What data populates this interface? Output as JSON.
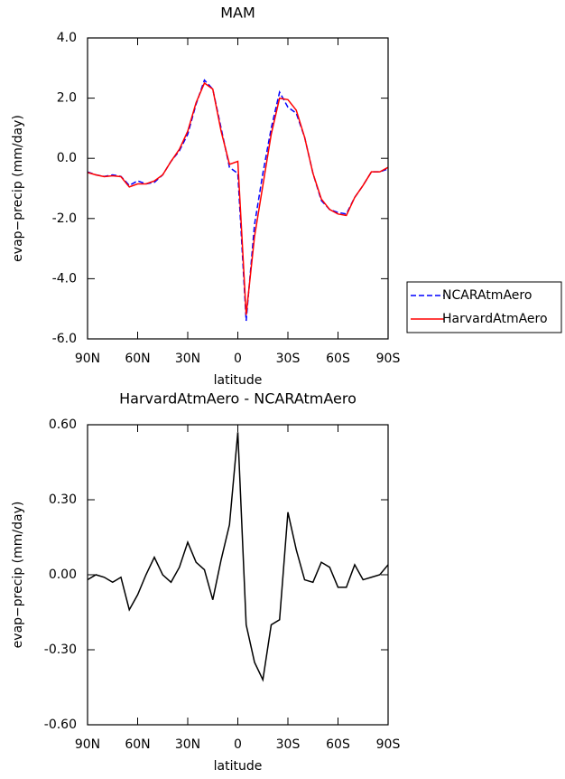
{
  "chart_data": [
    {
      "type": "line",
      "title": "MAM",
      "xlabel": "latitude",
      "ylabel": "evap−precip (mm/day)",
      "x": [
        90,
        85,
        80,
        75,
        70,
        65,
        60,
        55,
        50,
        45,
        40,
        35,
        30,
        25,
        20,
        15,
        10,
        5,
        0,
        -5,
        -10,
        -15,
        -20,
        -25,
        -30,
        -35,
        -40,
        -45,
        -50,
        -55,
        -60,
        -65,
        -70,
        -75,
        -80,
        -85,
        -90
      ],
      "series": [
        {
          "name": "NCARAtmAero",
          "color": "#0000ff",
          "style": "dashed",
          "values": [
            -0.45,
            -0.55,
            -0.6,
            -0.55,
            -0.6,
            -0.9,
            -0.75,
            -0.85,
            -0.8,
            -0.55,
            -0.1,
            0.25,
            0.8,
            1.8,
            2.6,
            2.3,
            1.0,
            -0.3,
            -0.5,
            -5.4,
            -2.2,
            -0.5,
            1.0,
            2.2,
            1.7,
            1.5,
            0.7,
            -0.5,
            -1.4,
            -1.7,
            -1.8,
            -1.85,
            -1.3,
            -0.9,
            -0.45,
            -0.45,
            -0.35
          ]
        },
        {
          "name": "HarvardAtmAero",
          "color": "#ff0000",
          "style": "solid",
          "values": [
            -0.47,
            -0.55,
            -0.61,
            -0.58,
            -0.61,
            -0.95,
            -0.85,
            -0.85,
            -0.75,
            -0.55,
            -0.1,
            0.3,
            0.9,
            1.85,
            2.5,
            2.3,
            0.9,
            -0.2,
            -0.1,
            -5.2,
            -2.6,
            -0.9,
            0.8,
            2.0,
            1.95,
            1.6,
            0.7,
            -0.5,
            -1.35,
            -1.7,
            -1.85,
            -1.9,
            -1.3,
            -0.9,
            -0.45,
            -0.45,
            -0.3
          ]
        }
      ],
      "xlim": [
        90,
        -90
      ],
      "ylim": [
        -6,
        4
      ],
      "xticks": [
        {
          "value": 90,
          "label": "90N"
        },
        {
          "value": 60,
          "label": "60N"
        },
        {
          "value": 30,
          "label": "30N"
        },
        0,
        {
          "value": -30,
          "label": "30S"
        },
        {
          "value": -60,
          "label": "60S"
        },
        {
          "value": -90,
          "label": "90S"
        }
      ],
      "yticks": [
        {
          "value": 4,
          "label": "4.0"
        },
        {
          "value": 2,
          "label": "2.0"
        },
        {
          "value": 0,
          "label": "0.0"
        },
        {
          "value": -2,
          "label": "-2.0"
        },
        {
          "value": -4,
          "label": "-4.0"
        },
        {
          "value": -6,
          "label": "-6.0"
        }
      ],
      "legend": "right"
    },
    {
      "type": "line",
      "title": "HarvardAtmAero - NCARAtmAero",
      "xlabel": "latitude",
      "ylabel": "evap−precip (mm/day)",
      "x": [
        90,
        85,
        80,
        75,
        70,
        65,
        60,
        55,
        50,
        45,
        40,
        35,
        30,
        25,
        20,
        15,
        10,
        5,
        0,
        -5,
        -10,
        -15,
        -20,
        -25,
        -30,
        -35,
        -40,
        -45,
        -50,
        -55,
        -60,
        -65,
        -70,
        -75,
        -80,
        -85,
        -90
      ],
      "series": [
        {
          "color": "#000000",
          "style": "solid",
          "values": [
            -0.02,
            0.0,
            -0.01,
            -0.03,
            -0.01,
            -0.14,
            -0.08,
            0.0,
            0.07,
            0.0,
            -0.03,
            0.03,
            0.13,
            0.05,
            0.02,
            -0.1,
            0.06,
            0.2,
            0.57,
            -0.2,
            -0.35,
            -0.42,
            -0.2,
            -0.18,
            0.25,
            0.1,
            -0.02,
            -0.03,
            0.05,
            0.03,
            -0.05,
            -0.05,
            0.04,
            -0.02,
            -0.01,
            0.0,
            0.04
          ]
        }
      ],
      "xlim": [
        90,
        -90
      ],
      "ylim": [
        -0.6,
        0.6
      ],
      "xticks": [
        {
          "value": 90,
          "label": "90N"
        },
        {
          "value": 60,
          "label": "60N"
        },
        {
          "value": 30,
          "label": "30N"
        },
        0,
        {
          "value": -30,
          "label": "30S"
        },
        {
          "value": -60,
          "label": "60S"
        },
        {
          "value": -90,
          "label": "90S"
        }
      ],
      "yticks": [
        {
          "value": 0.6,
          "label": "0.60"
        },
        {
          "value": 0.3,
          "label": "0.30"
        },
        {
          "value": 0,
          "label": "0.00"
        },
        {
          "value": -0.3,
          "label": "-0.30"
        },
        {
          "value": -0.6,
          "label": "-0.60"
        }
      ]
    }
  ]
}
